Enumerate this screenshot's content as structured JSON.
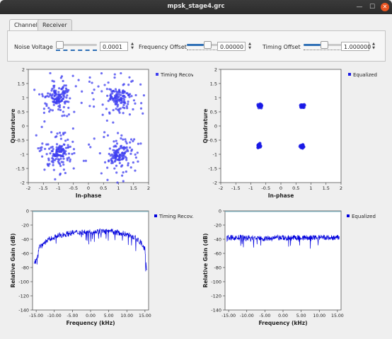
{
  "window": {
    "title": "mpsk_stage4.grc",
    "minimize_icon": "minimize-icon",
    "maximize_icon": "maximize-icon",
    "close_icon": "close-icon"
  },
  "tabs": [
    {
      "label": "Channel",
      "active": true
    },
    {
      "label": "Receiver",
      "active": false
    }
  ],
  "controls": {
    "noise": {
      "label": "Noise Voltage",
      "value": "0.0001",
      "level": 0.0
    },
    "freq": {
      "label": "Frequency Offset",
      "value": "0.00000",
      "level": 0.5
    },
    "timing": {
      "label": "Timing Offset",
      "value": "1.000000",
      "level": 0.5
    }
  },
  "plots": {
    "const_left": {
      "legend": "Timing Recov.",
      "xlabel": "In-phase",
      "ylabel": "Quadrature",
      "xticks": [
        "-2",
        "-1.5",
        "-1",
        "-0.5",
        "0",
        "0.5",
        "1",
        "1.5",
        "2"
      ],
      "yticks": [
        "2",
        "1.5",
        "1",
        "0.5",
        "0",
        "-0.5",
        "-1",
        "-1.5",
        "-2"
      ],
      "color": "#3d3df0"
    },
    "const_right": {
      "legend": "Equalized",
      "xlabel": "In-phase",
      "ylabel": "Quadrature",
      "xticks": [
        "-2",
        "-1.5",
        "-1",
        "-0.5",
        "0",
        "0.5",
        "1",
        "1.5",
        "2"
      ],
      "yticks": [
        "2",
        "1.5",
        "1",
        "0.5",
        "0",
        "-0.5",
        "-1",
        "-1.5",
        "-2"
      ],
      "color": "#1a1ae6"
    },
    "psd_left": {
      "legend": "Timing Recov.",
      "xlabel": "Frequency (kHz)",
      "ylabel": "Relative Gain (dB)",
      "xticks": [
        "-15.00",
        "-10.00",
        "-5.00",
        "0.00",
        "5.00",
        "10.00",
        "15.00"
      ],
      "yticks": [
        "0",
        "-20",
        "-40",
        "-60",
        "-80",
        "-100",
        "-120",
        "-140"
      ],
      "color": "#0000dd"
    },
    "psd_right": {
      "legend": "Equalized",
      "xlabel": "Frequency (kHz)",
      "ylabel": "Relative Gain (dB)",
      "xticks": [
        "-15.00",
        "-10.00",
        "-5.00",
        "0.00",
        "5.00",
        "10.00",
        "15.00"
      ],
      "yticks": [
        "0",
        "-20",
        "-40",
        "-60",
        "-80",
        "-100",
        "-120",
        "-140"
      ],
      "color": "#0000dd"
    }
  },
  "chart_data": [
    {
      "type": "scatter",
      "name": "const_left",
      "xlim": [
        -2,
        2
      ],
      "ylim": [
        -2,
        2
      ],
      "series": [
        {
          "name": "Timing Recov.",
          "clusters": [
            [
              -1,
              1
            ],
            [
              1,
              1
            ],
            [
              -1,
              -1
            ],
            [
              1,
              -1
            ]
          ],
          "spread": 0.35
        }
      ]
    },
    {
      "type": "scatter",
      "name": "const_right",
      "xlim": [
        -2,
        2
      ],
      "ylim": [
        -2,
        2
      ],
      "series": [
        {
          "name": "Equalized",
          "clusters": [
            [
              -0.7,
              0.72
            ],
            [
              0.72,
              0.7
            ],
            [
              -0.72,
              -0.7
            ],
            [
              0.7,
              -0.72
            ]
          ],
          "spread": 0.03
        }
      ]
    },
    {
      "type": "line",
      "name": "psd_left",
      "xlim": [
        -16,
        16
      ],
      "ylim": [
        -140,
        0
      ],
      "series": [
        {
          "name": "Timing Recov.",
          "x": [
            -15.5,
            -14,
            -12,
            -10,
            -8,
            -5,
            -2,
            0,
            2,
            5,
            8,
            10,
            12,
            14,
            15,
            15.5
          ],
          "values": [
            -75,
            -50,
            -42,
            -37,
            -34,
            -31,
            -30,
            -30,
            -29,
            -29,
            -31,
            -33,
            -37,
            -45,
            -55,
            -85
          ]
        }
      ]
    },
    {
      "type": "line",
      "name": "psd_right",
      "xlim": [
        -16,
        16
      ],
      "ylim": [
        -140,
        0
      ],
      "series": [
        {
          "name": "Equalized",
          "x": [
            -15.5,
            -10,
            -5,
            0,
            5,
            10,
            15.5
          ],
          "values": [
            -38,
            -38,
            -39,
            -38,
            -38,
            -38,
            -38
          ]
        }
      ]
    }
  ]
}
